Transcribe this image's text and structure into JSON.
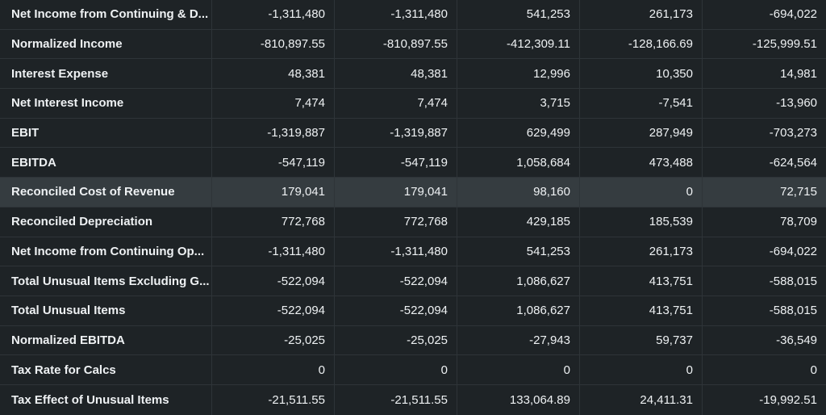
{
  "table": {
    "rows": [
      {
        "label": "Net Income from Continuing & D...",
        "values": [
          "-1,311,480",
          "-1,311,480",
          "541,253",
          "261,173",
          "-694,022"
        ]
      },
      {
        "label": "Normalized Income",
        "values": [
          "-810,897.55",
          "-810,897.55",
          "-412,309.11",
          "-128,166.69",
          "-125,999.51"
        ]
      },
      {
        "label": "Interest Expense",
        "values": [
          "48,381",
          "48,381",
          "12,996",
          "10,350",
          "14,981"
        ]
      },
      {
        "label": "Net Interest Income",
        "values": [
          "7,474",
          "7,474",
          "3,715",
          "-7,541",
          "-13,960"
        ]
      },
      {
        "label": "EBIT",
        "values": [
          "-1,319,887",
          "-1,319,887",
          "629,499",
          "287,949",
          "-703,273"
        ]
      },
      {
        "label": "EBITDA",
        "values": [
          "-547,119",
          "-547,119",
          "1,058,684",
          "473,488",
          "-624,564"
        ]
      },
      {
        "label": "Reconciled Cost of Revenue",
        "values": [
          "179,041",
          "179,041",
          "98,160",
          "0",
          "72,715"
        ]
      },
      {
        "label": "Reconciled Depreciation",
        "values": [
          "772,768",
          "772,768",
          "429,185",
          "185,539",
          "78,709"
        ]
      },
      {
        "label": "Net Income from Continuing Op...",
        "values": [
          "-1,311,480",
          "-1,311,480",
          "541,253",
          "261,173",
          "-694,022"
        ]
      },
      {
        "label": "Total Unusual Items Excluding G...",
        "values": [
          "-522,094",
          "-522,094",
          "1,086,627",
          "413,751",
          "-588,015"
        ]
      },
      {
        "label": "Total Unusual Items",
        "values": [
          "-522,094",
          "-522,094",
          "1,086,627",
          "413,751",
          "-588,015"
        ]
      },
      {
        "label": "Normalized EBITDA",
        "values": [
          "-25,025",
          "-25,025",
          "-27,943",
          "59,737",
          "-36,549"
        ]
      },
      {
        "label": "Tax Rate for Calcs",
        "values": [
          "0",
          "0",
          "0",
          "0",
          "0"
        ]
      },
      {
        "label": "Tax Effect of Unusual Items",
        "values": [
          "-21,511.55",
          "-21,511.55",
          "133,064.89",
          "24,411.31",
          "-19,992.51"
        ]
      }
    ]
  }
}
